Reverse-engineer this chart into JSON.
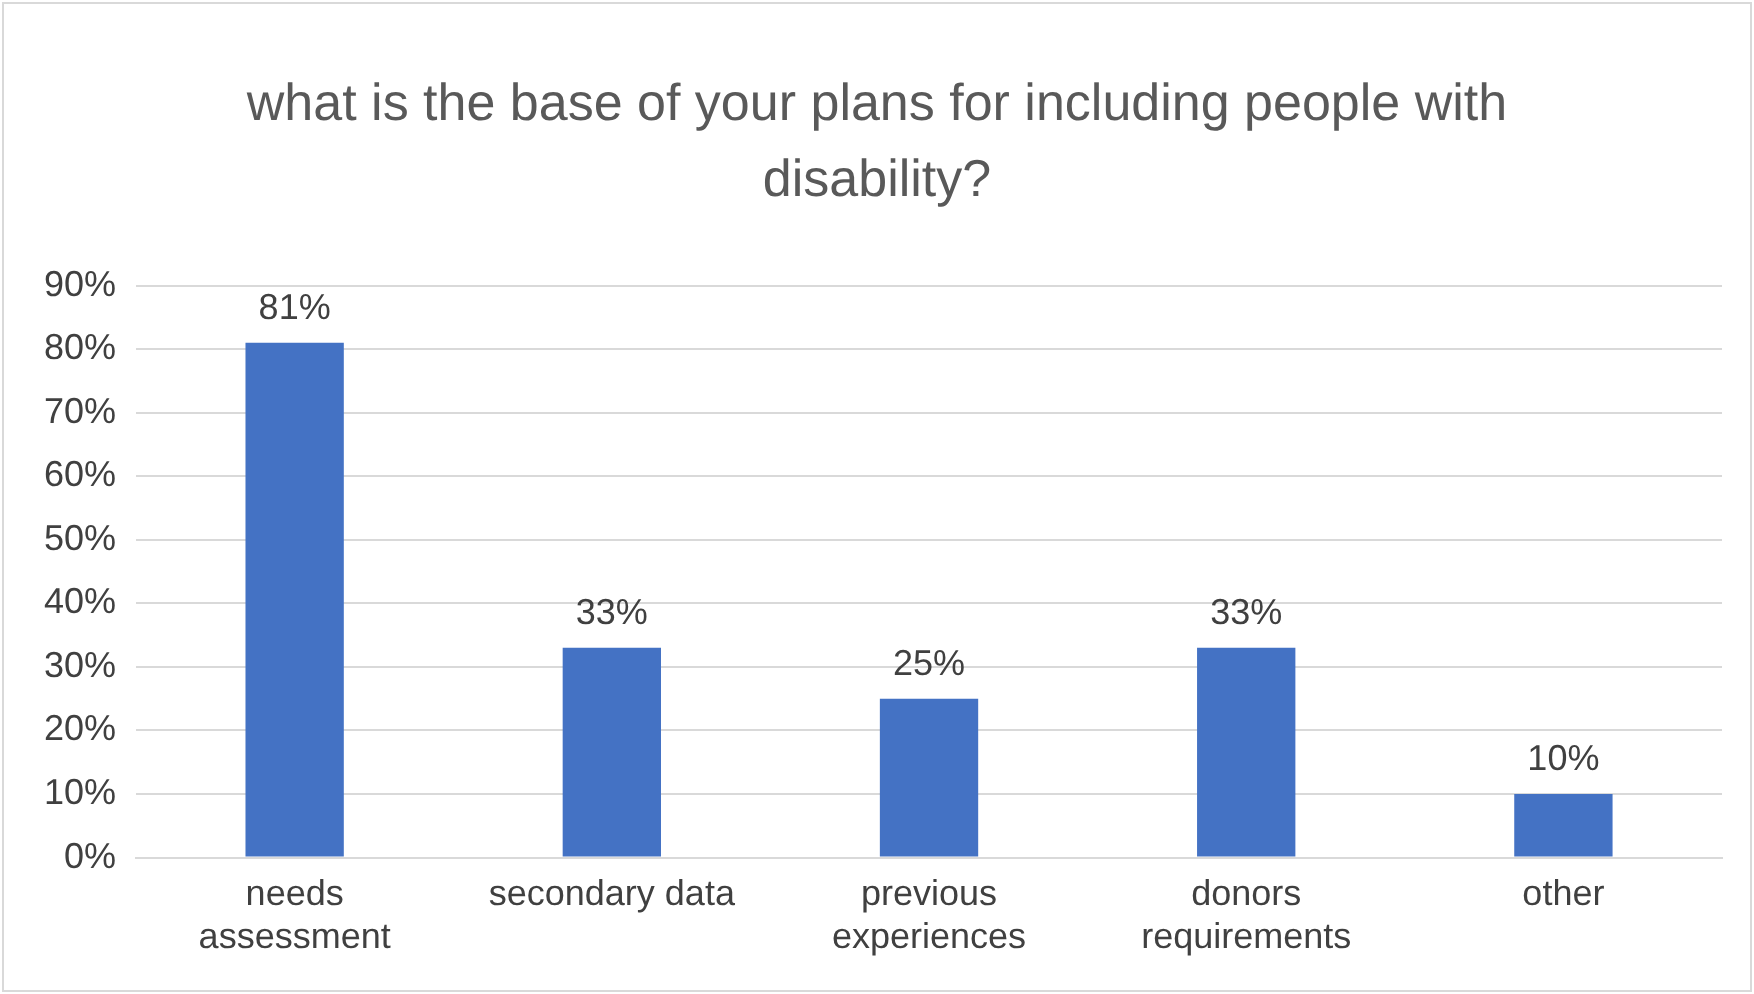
{
  "chart_data": {
    "type": "bar",
    "title": "what is the base of your plans for including people with disability?",
    "categories": [
      "needs assessment",
      "secondary data",
      "previous experiences",
      "donors requirements",
      "other"
    ],
    "values": [
      81,
      33,
      25,
      33,
      10
    ],
    "color": "#4472c4",
    "value_labels": [
      "81%",
      "33%",
      "25%",
      "33%",
      "10%"
    ],
    "ylim": [
      0,
      90
    ],
    "yticks": [
      {
        "value": 0,
        "label": "0%"
      },
      {
        "value": 10,
        "label": "10%"
      },
      {
        "value": 20,
        "label": "20%"
      },
      {
        "value": 30,
        "label": "30%"
      },
      {
        "value": 40,
        "label": "40%"
      },
      {
        "value": 50,
        "label": "50%"
      },
      {
        "value": 60,
        "label": "60%"
      },
      {
        "value": 70,
        "label": "70%"
      },
      {
        "value": 80,
        "label": "80%"
      },
      {
        "value": 90,
        "label": "90%"
      }
    ],
    "grid": "y",
    "legend": false
  }
}
